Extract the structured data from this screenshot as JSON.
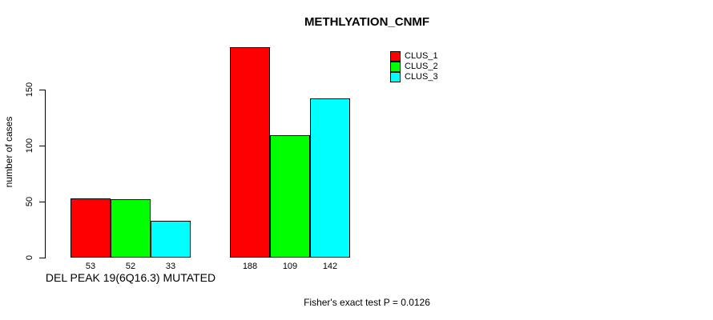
{
  "title": "METHLYATION_CNMF",
  "y_axis": {
    "label": "number of cases",
    "ticks": [
      "0",
      "50",
      "100",
      "150"
    ]
  },
  "legend": {
    "items": [
      {
        "label": "CLUS_1",
        "color": "#ff0000"
      },
      {
        "label": "CLUS_2",
        "color": "#00ff00"
      },
      {
        "label": "CLUS_3",
        "color": "#00ffff"
      }
    ]
  },
  "footer": "Fisher's exact test P = 0.0126",
  "chart_data": {
    "type": "bar",
    "title": "METHLYATION_CNMF",
    "ylabel": "number of cases",
    "xlabel": "",
    "ylim": [
      0,
      150
    ],
    "yticks": [
      0,
      50,
      100,
      150
    ],
    "grid": false,
    "legend_position": "top-right",
    "categories": [
      "DEL PEAK 19(6Q16.3) MUTATED",
      ""
    ],
    "series": [
      {
        "name": "CLUS_1",
        "color": "#ff0000",
        "values": [
          53,
          188
        ]
      },
      {
        "name": "CLUS_2",
        "color": "#00ff00",
        "values": [
          52,
          109
        ]
      },
      {
        "name": "CLUS_3",
        "color": "#00ffff",
        "values": [
          33,
          142
        ]
      }
    ],
    "bar_value_labels": [
      [
        53,
        52,
        33
      ],
      [
        188,
        109,
        142
      ]
    ],
    "annotation": "Fisher's exact test P = 0.0126"
  }
}
